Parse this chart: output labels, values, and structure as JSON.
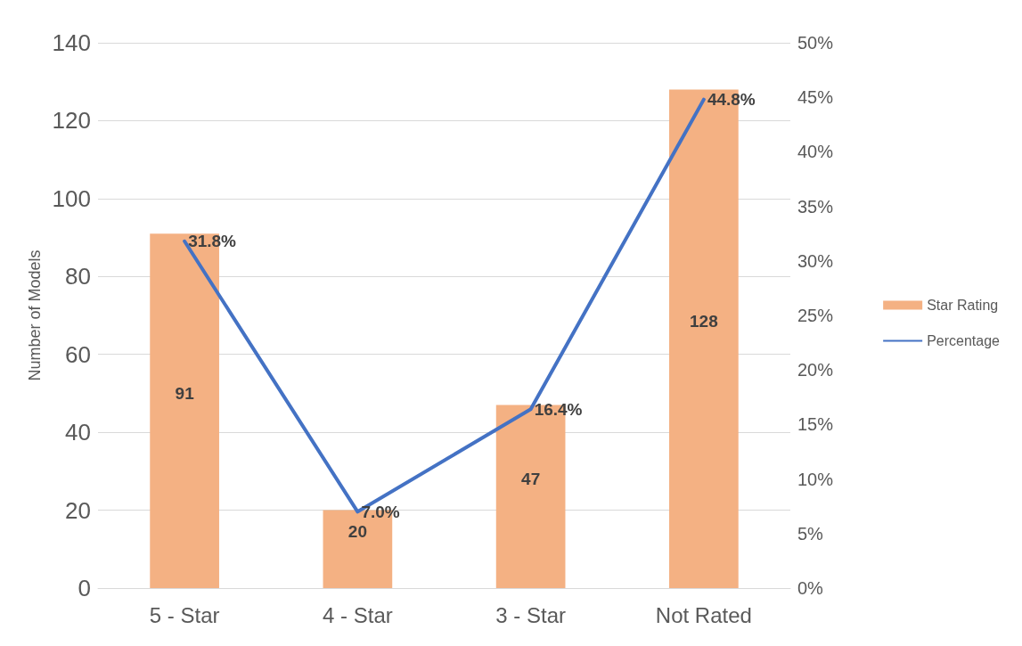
{
  "chart_data": {
    "type": "bar",
    "ylabel": "Number of Models",
    "categories": [
      "5 - Star",
      "4 - Star",
      "3 - Star",
      "Not Rated"
    ],
    "series": [
      {
        "name": "Star Rating",
        "color": "#f4b183",
        "values": [
          91,
          20,
          47,
          128
        ],
        "value_labels": [
          "91",
          "20",
          "47",
          "128"
        ]
      },
      {
        "name": "Percentage",
        "type": "line",
        "axis": "y2",
        "color": "#4472c4",
        "values": [
          31.8,
          7.0,
          16.4,
          44.8
        ],
        "value_labels": [
          "31.8%",
          "7.0%",
          "16.4%",
          "44.8%"
        ]
      }
    ],
    "ylim": [
      0,
      140
    ],
    "yticks": [
      0,
      20,
      40,
      60,
      80,
      100,
      120,
      140
    ],
    "y2lim": [
      0,
      50
    ],
    "y2ticks": [
      {
        "value": 0,
        "label": "0%"
      },
      {
        "value": 5,
        "label": "5%"
      },
      {
        "value": 10,
        "label": "10%"
      },
      {
        "value": 15,
        "label": "15%"
      },
      {
        "value": 20,
        "label": "20%"
      },
      {
        "value": 25,
        "label": "25%"
      },
      {
        "value": 30,
        "label": "30%"
      },
      {
        "value": 35,
        "label": "35%"
      },
      {
        "value": 40,
        "label": "40%"
      },
      {
        "value": 45,
        "label": "45%"
      },
      {
        "value": 50,
        "label": "50%"
      }
    ],
    "grid": true,
    "legend": "right",
    "marker": "none",
    "line_style": "solid"
  }
}
